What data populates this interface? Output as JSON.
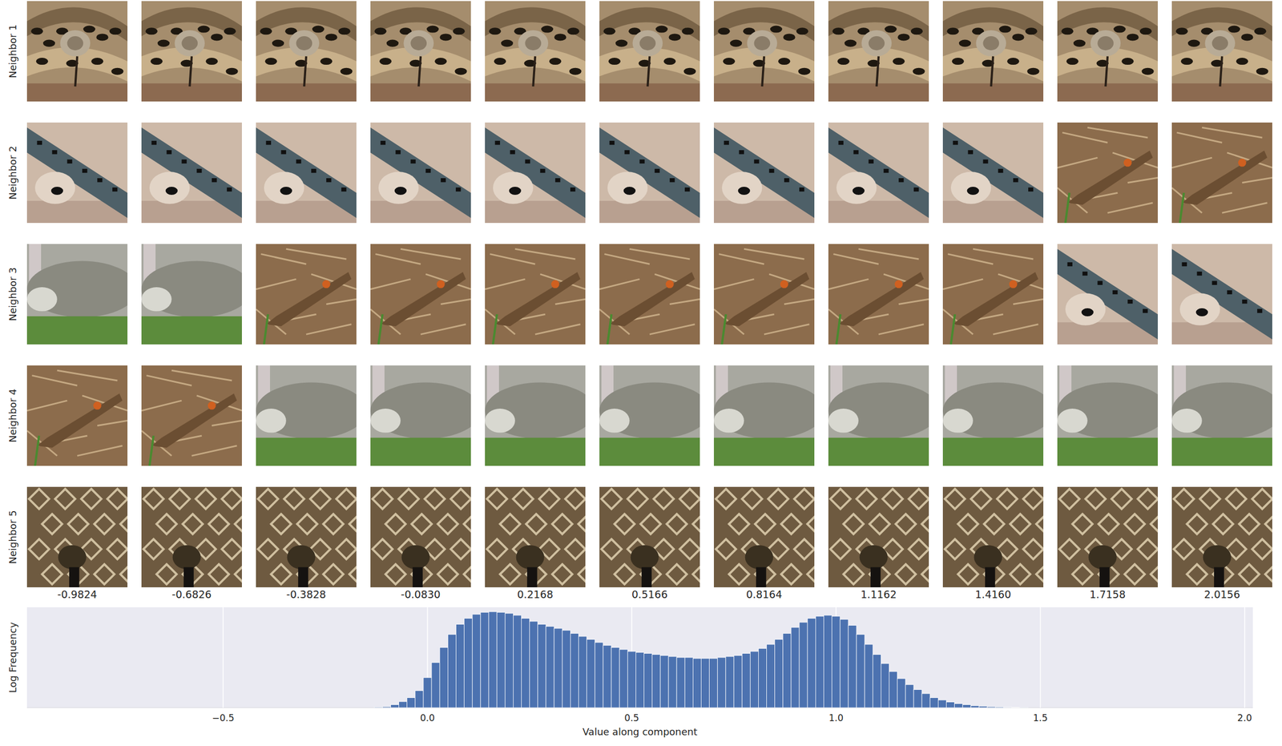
{
  "chart_data": {
    "type": "histogram",
    "x_label": "Value along component",
    "y_label": "Log Frequency",
    "bins": [
      -0.13,
      -0.11,
      -0.09,
      -0.07,
      -0.05,
      -0.03,
      -0.01,
      0.01,
      0.03,
      0.05,
      0.07,
      0.09,
      0.11,
      0.13,
      0.15,
      0.17,
      0.19,
      0.21,
      0.23,
      0.25,
      0.27,
      0.29,
      0.31,
      0.33,
      0.35,
      0.37,
      0.39,
      0.41,
      0.43,
      0.45,
      0.47,
      0.49,
      0.51,
      0.53,
      0.55,
      0.57,
      0.59,
      0.61,
      0.63,
      0.65,
      0.67,
      0.69,
      0.71,
      0.73,
      0.75,
      0.77,
      0.79,
      0.81,
      0.83,
      0.85,
      0.87,
      0.89,
      0.91,
      0.93,
      0.95,
      0.97,
      0.99,
      1.01,
      1.03,
      1.05,
      1.07,
      1.09,
      1.11,
      1.13,
      1.15,
      1.17,
      1.19,
      1.21,
      1.23,
      1.25,
      1.27,
      1.29,
      1.31,
      1.33,
      1.35,
      1.37,
      1.39,
      1.41,
      1.43,
      1.45,
      1.47
    ],
    "values": [
      0.03,
      0.05,
      0.15,
      0.3,
      0.5,
      0.85,
      1.5,
      2.25,
      3.0,
      3.65,
      4.15,
      4.45,
      4.65,
      4.75,
      4.78,
      4.75,
      4.7,
      4.6,
      4.45,
      4.3,
      4.15,
      4.05,
      3.95,
      3.85,
      3.7,
      3.55,
      3.4,
      3.25,
      3.1,
      3.0,
      2.9,
      2.8,
      2.75,
      2.7,
      2.65,
      2.6,
      2.55,
      2.5,
      2.5,
      2.45,
      2.45,
      2.45,
      2.5,
      2.55,
      2.6,
      2.7,
      2.8,
      2.95,
      3.15,
      3.4,
      3.7,
      4.0,
      4.25,
      4.45,
      4.55,
      4.6,
      4.55,
      4.4,
      4.1,
      3.65,
      3.15,
      2.65,
      2.2,
      1.8,
      1.45,
      1.15,
      0.9,
      0.7,
      0.5,
      0.38,
      0.28,
      0.2,
      0.15,
      0.1,
      0.075,
      0.05,
      0.035,
      0.025,
      0.015,
      0.01
    ],
    "color": "#4c72b0",
    "xlim": [
      -0.98,
      2.02
    ],
    "ylim": [
      0,
      5
    ],
    "xticks": [
      {
        "value": -0.5,
        "label": "−0.5"
      },
      {
        "value": 0,
        "label": "0.0"
      },
      0.5,
      {
        "value": 1,
        "label": "1.0"
      },
      1.5,
      {
        "value": 2,
        "label": "2.0"
      }
    ],
    "grid": true,
    "tick_labels": "x"
  },
  "image_grid": {
    "row_labels": [
      "Neighbor 1",
      "Neighbor 2",
      "Neighbor 3",
      "Neighbor 4",
      "Neighbor 5"
    ],
    "column_values": [
      {
        "value": -0.9824,
        "label": "-0.9824"
      },
      {
        "value": -0.6826,
        "label": "-0.6826"
      },
      {
        "value": -0.3828,
        "label": "-0.3828"
      },
      {
        "value": -0.083,
        "label": "-0.0830"
      },
      {
        "value": 0.2168,
        "label": "0.2168"
      },
      {
        "value": 0.5166,
        "label": "0.5166"
      },
      {
        "value": 0.8164,
        "label": "0.8164"
      },
      {
        "value": 1.1162,
        "label": "1.1162"
      },
      {
        "value": 1.416,
        "label": "1.4160"
      },
      {
        "value": 1.7158,
        "label": "1.7158"
      },
      {
        "value": 2.0156,
        "label": "2.0156"
      }
    ]
  }
}
